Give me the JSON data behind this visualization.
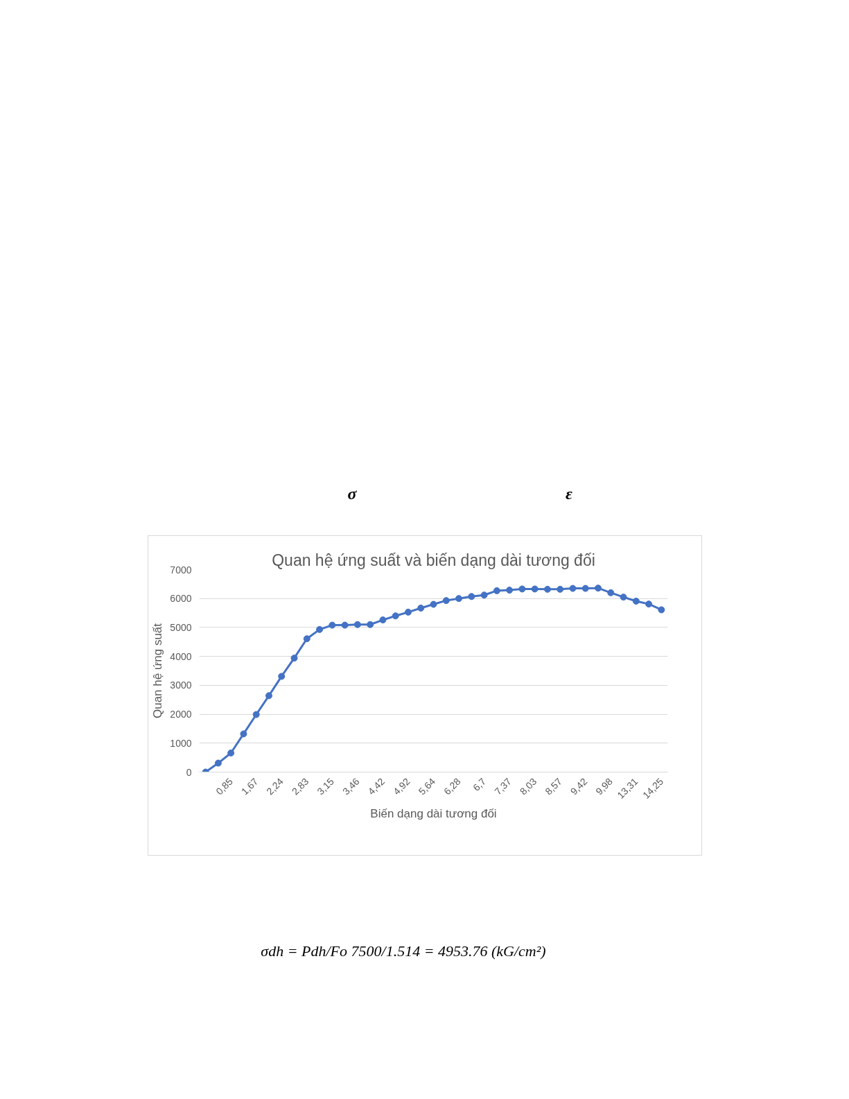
{
  "chart_data": {
    "type": "line",
    "title": "Quan hệ ứng suất và biến dạng dài tương đối",
    "xlabel": "Biến dạng dài tương đối",
    "ylabel": "Quan hệ ứng suất",
    "categories": [
      null,
      null,
      "0,85",
      null,
      "1,67",
      null,
      "2,24",
      null,
      "2,83",
      null,
      "3,15",
      null,
      "3,46",
      null,
      "4,42",
      null,
      "4,92",
      null,
      "5,64",
      null,
      "6,28",
      null,
      "6,7",
      null,
      "7,37",
      null,
      "8,03",
      null,
      "8,57",
      null,
      "9,42",
      null,
      "9,98",
      null,
      "13,31",
      null,
      "14,25"
    ],
    "series": [
      {
        "color": "#4472c4",
        "values": [
          0,
          310,
          660,
          1320,
          1990,
          2640,
          3310,
          3940,
          4610,
          4930,
          5080,
          5080,
          5100,
          5100,
          5260,
          5400,
          5530,
          5670,
          5800,
          5930,
          6000,
          6070,
          6120,
          6270,
          6290,
          6330,
          6330,
          6320,
          6320,
          6350,
          6350,
          6360,
          6200,
          6050,
          5910,
          5810,
          5610
        ]
      }
    ],
    "ylim": [
      0,
      7000
    ],
    "yticks": [
      0,
      1000,
      2000,
      3000,
      4000,
      5000,
      6000,
      7000
    ],
    "grid": "y",
    "marker": "circle",
    "line_style": "solid",
    "annotations": [
      "σ",
      "ε",
      "σdh = Pdh/Fo    7500/1.514 = 4953.76 (kG/cm²)"
    ]
  }
}
